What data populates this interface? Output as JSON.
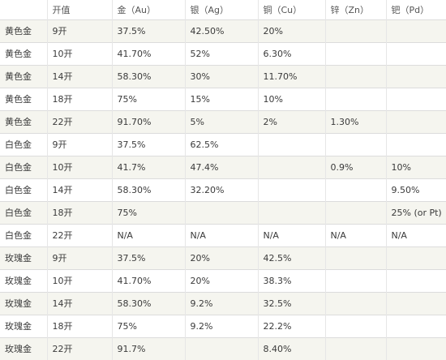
{
  "table": {
    "headers": [
      "",
      "开值",
      "金（Au）",
      "银（Ag）",
      "铜（Cu）",
      "锌（Zn）",
      "钯（Pd）"
    ],
    "rows": [
      [
        "黄色金",
        "9开",
        "37.5%",
        "42.50%",
        "20%",
        "",
        ""
      ],
      [
        "黄色金",
        "10开",
        "41.70%",
        "52%",
        "6.30%",
        "",
        ""
      ],
      [
        "黄色金",
        "14开",
        "58.30%",
        "30%",
        "11.70%",
        "",
        ""
      ],
      [
        "黄色金",
        "18开",
        "75%",
        "15%",
        "10%",
        "",
        ""
      ],
      [
        "黄色金",
        "22开",
        "91.70%",
        "5%",
        "2%",
        "1.30%",
        ""
      ],
      [
        "白色金",
        "9开",
        "37.5%",
        "62.5%",
        "",
        "",
        ""
      ],
      [
        "白色金",
        "10开",
        "41.7%",
        "47.4%",
        "",
        "0.9%",
        "10%"
      ],
      [
        "白色金",
        "14开",
        "58.30%",
        "32.20%",
        "",
        "",
        "9.50%"
      ],
      [
        "白色金",
        "18开",
        "75%",
        "",
        "",
        "",
        "25% (or Pt)"
      ],
      [
        "白色金",
        "22开",
        "N/A",
        "N/A",
        "N/A",
        "N/A",
        "N/A"
      ],
      [
        "玫瑰金",
        "9开",
        "37.5%",
        "20%",
        "42.5%",
        "",
        ""
      ],
      [
        "玫瑰金",
        "10开",
        "41.70%",
        "20%",
        "38.3%",
        "",
        ""
      ],
      [
        "玫瑰金",
        "14开",
        "58.30%",
        "9.2%",
        "32.5%",
        "",
        ""
      ],
      [
        "玫瑰金",
        "18开",
        "75%",
        "9.2%",
        "22.2%",
        "",
        ""
      ],
      [
        "玫瑰金",
        "22开",
        "91.7%",
        "",
        "8.40%",
        "",
        ""
      ]
    ]
  }
}
